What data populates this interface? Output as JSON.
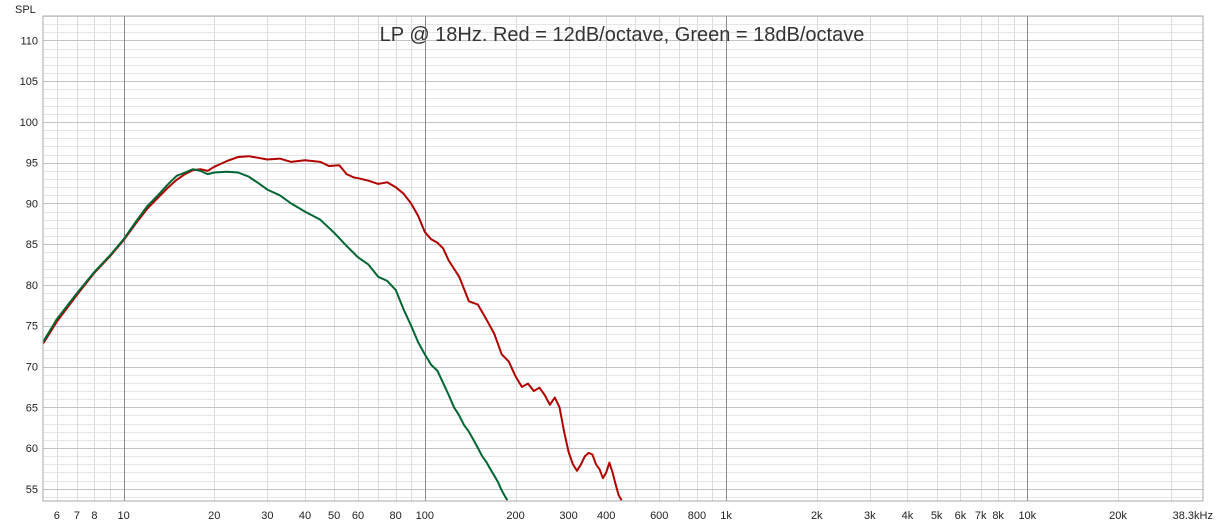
{
  "chart_data": {
    "type": "line",
    "title": "LP @ 18Hz. Red = 12dB/octave, Green = 18dB/octave",
    "ylabel": "SPL",
    "xlabel": "",
    "x_scale": "log",
    "xlim": [
      5.4,
      38300
    ],
    "ylim": [
      53.5,
      113
    ],
    "grid": true,
    "legend": "none",
    "y_ticks": [
      {
        "value": 55,
        "label": "55"
      },
      {
        "value": 60,
        "label": "60"
      },
      {
        "value": 65,
        "label": "65"
      },
      {
        "value": 70,
        "label": "70"
      },
      {
        "value": 75,
        "label": "75"
      },
      {
        "value": 80,
        "label": "80"
      },
      {
        "value": 85,
        "label": "85"
      },
      {
        "value": 90,
        "label": "90"
      },
      {
        "value": 95,
        "label": "95"
      },
      {
        "value": 100,
        "label": "100"
      },
      {
        "value": 105,
        "label": "105"
      },
      {
        "value": 110,
        "label": "110"
      }
    ],
    "x_ticks": [
      {
        "value": 6,
        "label": "6"
      },
      {
        "value": 7,
        "label": "7"
      },
      {
        "value": 8,
        "label": "8"
      },
      {
        "value": 10,
        "label": "10"
      },
      {
        "value": 20,
        "label": "20"
      },
      {
        "value": 30,
        "label": "30"
      },
      {
        "value": 40,
        "label": "40"
      },
      {
        "value": 50,
        "label": "50"
      },
      {
        "value": 60,
        "label": "60"
      },
      {
        "value": 80,
        "label": "80"
      },
      {
        "value": 100,
        "label": "100"
      },
      {
        "value": 200,
        "label": "200"
      },
      {
        "value": 300,
        "label": "300"
      },
      {
        "value": 400,
        "label": "400"
      },
      {
        "value": 600,
        "label": "600"
      },
      {
        "value": 800,
        "label": "800"
      },
      {
        "value": 1000,
        "label": "1k"
      },
      {
        "value": 2000,
        "label": "2k"
      },
      {
        "value": 3000,
        "label": "3k"
      },
      {
        "value": 4000,
        "label": "4k"
      },
      {
        "value": 5000,
        "label": "5k"
      },
      {
        "value": 6000,
        "label": "6k"
      },
      {
        "value": 7000,
        "label": "7k"
      },
      {
        "value": 8000,
        "label": "8k"
      },
      {
        "value": 10000,
        "label": "10k"
      },
      {
        "value": 20000,
        "label": "20k"
      },
      {
        "value": 38300,
        "label": "38.3kHz"
      }
    ],
    "series": [
      {
        "color": "#b00000",
        "points": [
          [
            5.4,
            72.8
          ],
          [
            6,
            75.5
          ],
          [
            7,
            78.8
          ],
          [
            8,
            81.5
          ],
          [
            9,
            83.5
          ],
          [
            10,
            85.5
          ],
          [
            11,
            87.6
          ],
          [
            12,
            89.4
          ],
          [
            13,
            90.7
          ],
          [
            14,
            91.9
          ],
          [
            15,
            92.9
          ],
          [
            16,
            93.6
          ],
          [
            17,
            94.1
          ],
          [
            18,
            94.2
          ],
          [
            19,
            94.0
          ],
          [
            20,
            94.5
          ],
          [
            22,
            95.2
          ],
          [
            24,
            95.7
          ],
          [
            26,
            95.8
          ],
          [
            28,
            95.6
          ],
          [
            30,
            95.4
          ],
          [
            33,
            95.5
          ],
          [
            36,
            95.1
          ],
          [
            40,
            95.3
          ],
          [
            45,
            95.1
          ],
          [
            48,
            94.6
          ],
          [
            52,
            94.7
          ],
          [
            55,
            93.6
          ],
          [
            58,
            93.2
          ],
          [
            60,
            93.1
          ],
          [
            65,
            92.8
          ],
          [
            70,
            92.4
          ],
          [
            75,
            92.6
          ],
          [
            80,
            92.0
          ],
          [
            85,
            91.2
          ],
          [
            90,
            90.0
          ],
          [
            95,
            88.5
          ],
          [
            100,
            86.5
          ],
          [
            105,
            85.6
          ],
          [
            110,
            85.2
          ],
          [
            115,
            84.5
          ],
          [
            120,
            83.0
          ],
          [
            130,
            81.0
          ],
          [
            140,
            78.0
          ],
          [
            150,
            77.6
          ],
          [
            160,
            75.8
          ],
          [
            170,
            74.0
          ],
          [
            180,
            71.5
          ],
          [
            190,
            70.6
          ],
          [
            200,
            68.8
          ],
          [
            210,
            67.5
          ],
          [
            220,
            67.9
          ],
          [
            230,
            67.0
          ],
          [
            240,
            67.4
          ],
          [
            250,
            66.5
          ],
          [
            260,
            65.3
          ],
          [
            270,
            66.2
          ],
          [
            280,
            65.0
          ],
          [
            290,
            62.0
          ],
          [
            300,
            59.5
          ],
          [
            310,
            58.0
          ],
          [
            320,
            57.2
          ],
          [
            330,
            58.0
          ],
          [
            340,
            59.0
          ],
          [
            350,
            59.4
          ],
          [
            360,
            59.2
          ],
          [
            370,
            58.0
          ],
          [
            380,
            57.4
          ],
          [
            390,
            56.3
          ],
          [
            400,
            57.0
          ],
          [
            410,
            58.2
          ],
          [
            420,
            57.0
          ],
          [
            430,
            55.5
          ],
          [
            440,
            54.2
          ],
          [
            450,
            53.6
          ]
        ]
      },
      {
        "color": "#006633",
        "points": [
          [
            5.4,
            73.0
          ],
          [
            6,
            75.8
          ],
          [
            7,
            79.0
          ],
          [
            8,
            81.6
          ],
          [
            9,
            83.6
          ],
          [
            10,
            85.6
          ],
          [
            11,
            87.8
          ],
          [
            12,
            89.7
          ],
          [
            13,
            91.0
          ],
          [
            14,
            92.3
          ],
          [
            15,
            93.4
          ],
          [
            16,
            93.8
          ],
          [
            17,
            94.2
          ],
          [
            18,
            94.0
          ],
          [
            19,
            93.6
          ],
          [
            20,
            93.8
          ],
          [
            22,
            93.9
          ],
          [
            24,
            93.8
          ],
          [
            26,
            93.3
          ],
          [
            28,
            92.5
          ],
          [
            30,
            91.7
          ],
          [
            33,
            91.0
          ],
          [
            36,
            90.0
          ],
          [
            40,
            89.0
          ],
          [
            45,
            88.0
          ],
          [
            50,
            86.4
          ],
          [
            55,
            84.8
          ],
          [
            60,
            83.4
          ],
          [
            65,
            82.5
          ],
          [
            70,
            81.0
          ],
          [
            75,
            80.5
          ],
          [
            80,
            79.4
          ],
          [
            85,
            77.0
          ],
          [
            90,
            75.0
          ],
          [
            95,
            73.0
          ],
          [
            100,
            71.5
          ],
          [
            105,
            70.2
          ],
          [
            110,
            69.5
          ],
          [
            115,
            68.0
          ],
          [
            120,
            66.5
          ],
          [
            125,
            65.0
          ],
          [
            130,
            64.0
          ],
          [
            135,
            62.8
          ],
          [
            140,
            62.0
          ],
          [
            145,
            61.0
          ],
          [
            150,
            60.0
          ],
          [
            155,
            59.0
          ],
          [
            160,
            58.3
          ],
          [
            165,
            57.4
          ],
          [
            170,
            56.6
          ],
          [
            175,
            55.8
          ],
          [
            180,
            54.8
          ],
          [
            185,
            54.0
          ],
          [
            188,
            53.6
          ]
        ]
      }
    ]
  }
}
